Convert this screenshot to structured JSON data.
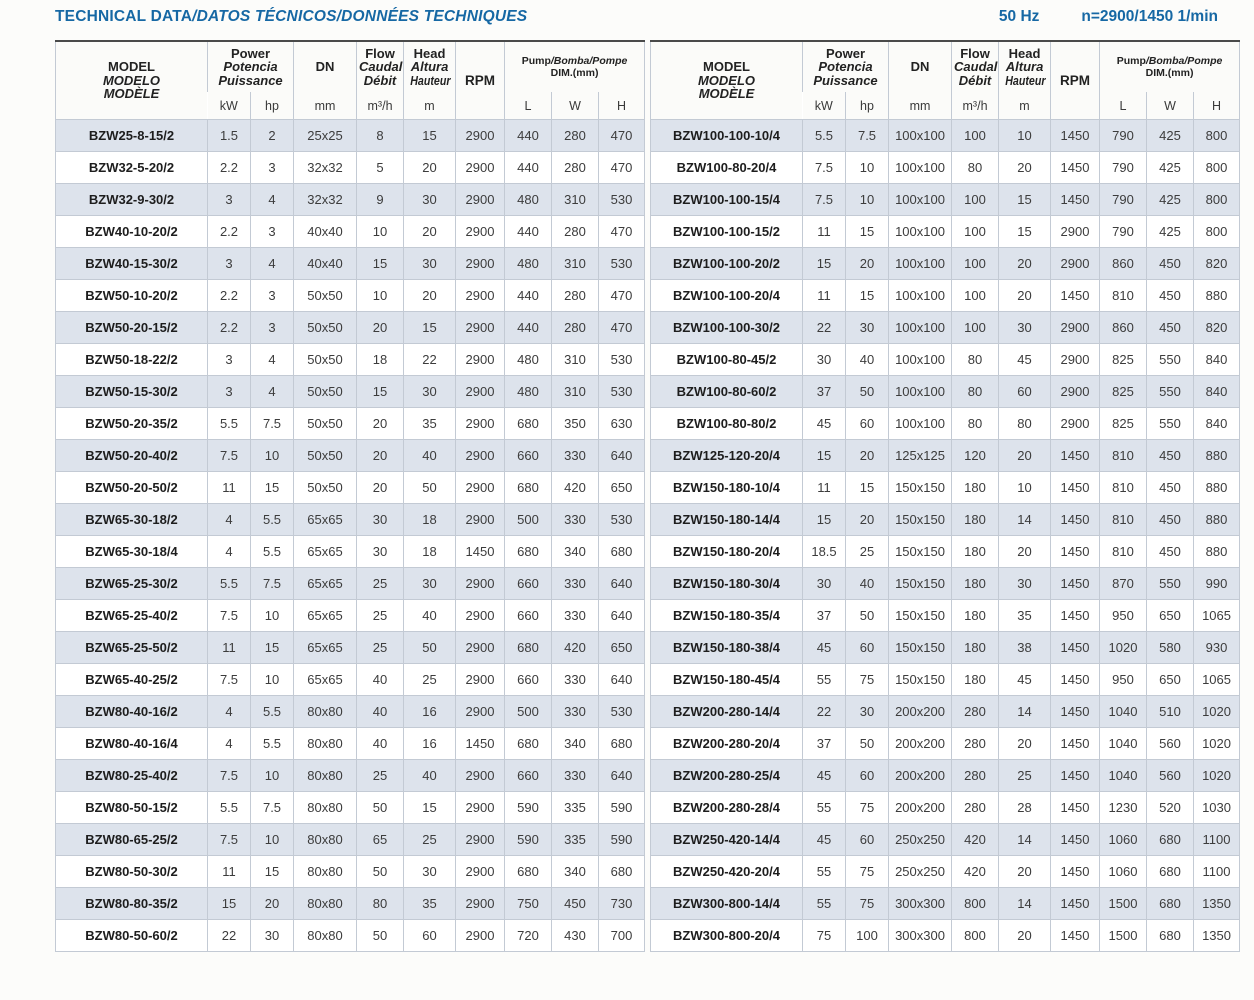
{
  "colors": {
    "accent_blue": "#1668a4",
    "row_stripe": "#dde3ec"
  },
  "topbar": {
    "title_en": "TECHNICAL DATA",
    "title_rest": "/DATOS TÉCNICOS/DONNÉES TECHNIQUES",
    "frequency": "50 Hz",
    "speed": "n=2900/1450 1/min"
  },
  "table_header": {
    "model_lines": [
      "MODEL",
      "MODELO",
      "MODÈLE"
    ],
    "power_lines": [
      "Power",
      "Potencia",
      "Puissance"
    ],
    "power_units": [
      "kW",
      "hp"
    ],
    "dn_label": "DN",
    "dn_unit": "mm",
    "flow_lines": [
      "Flow",
      "Caudal",
      "Débit"
    ],
    "flow_unit": "m³/h",
    "head_lines": [
      "Head",
      "Altura",
      "Hauteur"
    ],
    "head_unit": "m",
    "rpm_label": "RPM",
    "dim_en": "Pump",
    "dim_rest": "/Bomba/Pompe",
    "dim_sub": "DIM.(mm)",
    "dim_units": [
      "L",
      "W",
      "H"
    ]
  },
  "tables": {
    "left": {
      "rows": [
        [
          "BZW25-8-15/2",
          "1.5",
          "2",
          "25x25",
          "8",
          "15",
          "2900",
          "440",
          "280",
          "470"
        ],
        [
          "BZW32-5-20/2",
          "2.2",
          "3",
          "32x32",
          "5",
          "20",
          "2900",
          "440",
          "280",
          "470"
        ],
        [
          "BZW32-9-30/2",
          "3",
          "4",
          "32x32",
          "9",
          "30",
          "2900",
          "480",
          "310",
          "530"
        ],
        [
          "BZW40-10-20/2",
          "2.2",
          "3",
          "40x40",
          "10",
          "20",
          "2900",
          "440",
          "280",
          "470"
        ],
        [
          "BZW40-15-30/2",
          "3",
          "4",
          "40x40",
          "15",
          "30",
          "2900",
          "480",
          "310",
          "530"
        ],
        [
          "BZW50-10-20/2",
          "2.2",
          "3",
          "50x50",
          "10",
          "20",
          "2900",
          "440",
          "280",
          "470"
        ],
        [
          "BZW50-20-15/2",
          "2.2",
          "3",
          "50x50",
          "20",
          "15",
          "2900",
          "440",
          "280",
          "470"
        ],
        [
          "BZW50-18-22/2",
          "3",
          "4",
          "50x50",
          "18",
          "22",
          "2900",
          "480",
          "310",
          "530"
        ],
        [
          "BZW50-15-30/2",
          "3",
          "4",
          "50x50",
          "15",
          "30",
          "2900",
          "480",
          "310",
          "530"
        ],
        [
          "BZW50-20-35/2",
          "5.5",
          "7.5",
          "50x50",
          "20",
          "35",
          "2900",
          "680",
          "350",
          "630"
        ],
        [
          "BZW50-20-40/2",
          "7.5",
          "10",
          "50x50",
          "20",
          "40",
          "2900",
          "660",
          "330",
          "640"
        ],
        [
          "BZW50-20-50/2",
          "11",
          "15",
          "50x50",
          "20",
          "50",
          "2900",
          "680",
          "420",
          "650"
        ],
        [
          "BZW65-30-18/2",
          "4",
          "5.5",
          "65x65",
          "30",
          "18",
          "2900",
          "500",
          "330",
          "530"
        ],
        [
          "BZW65-30-18/4",
          "4",
          "5.5",
          "65x65",
          "30",
          "18",
          "1450",
          "680",
          "340",
          "680"
        ],
        [
          "BZW65-25-30/2",
          "5.5",
          "7.5",
          "65x65",
          "25",
          "30",
          "2900",
          "660",
          "330",
          "640"
        ],
        [
          "BZW65-25-40/2",
          "7.5",
          "10",
          "65x65",
          "25",
          "40",
          "2900",
          "660",
          "330",
          "640"
        ],
        [
          "BZW65-25-50/2",
          "11",
          "15",
          "65x65",
          "25",
          "50",
          "2900",
          "680",
          "420",
          "650"
        ],
        [
          "BZW65-40-25/2",
          "7.5",
          "10",
          "65x65",
          "40",
          "25",
          "2900",
          "660",
          "330",
          "640"
        ],
        [
          "BZW80-40-16/2",
          "4",
          "5.5",
          "80x80",
          "40",
          "16",
          "2900",
          "500",
          "330",
          "530"
        ],
        [
          "BZW80-40-16/4",
          "4",
          "5.5",
          "80x80",
          "40",
          "16",
          "1450",
          "680",
          "340",
          "680"
        ],
        [
          "BZW80-25-40/2",
          "7.5",
          "10",
          "80x80",
          "25",
          "40",
          "2900",
          "660",
          "330",
          "640"
        ],
        [
          "BZW80-50-15/2",
          "5.5",
          "7.5",
          "80x80",
          "50",
          "15",
          "2900",
          "590",
          "335",
          "590"
        ],
        [
          "BZW80-65-25/2",
          "7.5",
          "10",
          "80x80",
          "65",
          "25",
          "2900",
          "590",
          "335",
          "590"
        ],
        [
          "BZW80-50-30/2",
          "11",
          "15",
          "80x80",
          "50",
          "30",
          "2900",
          "680",
          "340",
          "680"
        ],
        [
          "BZW80-80-35/2",
          "15",
          "20",
          "80x80",
          "80",
          "35",
          "2900",
          "750",
          "450",
          "730"
        ],
        [
          "BZW80-50-60/2",
          "22",
          "30",
          "80x80",
          "50",
          "60",
          "2900",
          "720",
          "430",
          "700"
        ]
      ]
    },
    "right": {
      "rows": [
        [
          "BZW100-100-10/4",
          "5.5",
          "7.5",
          "100x100",
          "100",
          "10",
          "1450",
          "790",
          "425",
          "800"
        ],
        [
          "BZW100-80-20/4",
          "7.5",
          "10",
          "100x100",
          "80",
          "20",
          "1450",
          "790",
          "425",
          "800"
        ],
        [
          "BZW100-100-15/4",
          "7.5",
          "10",
          "100x100",
          "100",
          "15",
          "1450",
          "790",
          "425",
          "800"
        ],
        [
          "BZW100-100-15/2",
          "11",
          "15",
          "100x100",
          "100",
          "15",
          "2900",
          "790",
          "425",
          "800"
        ],
        [
          "BZW100-100-20/2",
          "15",
          "20",
          "100x100",
          "100",
          "20",
          "2900",
          "860",
          "450",
          "820"
        ],
        [
          "BZW100-100-20/4",
          "11",
          "15",
          "100x100",
          "100",
          "20",
          "1450",
          "810",
          "450",
          "880"
        ],
        [
          "BZW100-100-30/2",
          "22",
          "30",
          "100x100",
          "100",
          "30",
          "2900",
          "860",
          "450",
          "820"
        ],
        [
          "BZW100-80-45/2",
          "30",
          "40",
          "100x100",
          "80",
          "45",
          "2900",
          "825",
          "550",
          "840"
        ],
        [
          "BZW100-80-60/2",
          "37",
          "50",
          "100x100",
          "80",
          "60",
          "2900",
          "825",
          "550",
          "840"
        ],
        [
          "BZW100-80-80/2",
          "45",
          "60",
          "100x100",
          "80",
          "80",
          "2900",
          "825",
          "550",
          "840"
        ],
        [
          "BZW125-120-20/4",
          "15",
          "20",
          "125x125",
          "120",
          "20",
          "1450",
          "810",
          "450",
          "880"
        ],
        [
          "BZW150-180-10/4",
          "11",
          "15",
          "150x150",
          "180",
          "10",
          "1450",
          "810",
          "450",
          "880"
        ],
        [
          "BZW150-180-14/4",
          "15",
          "20",
          "150x150",
          "180",
          "14",
          "1450",
          "810",
          "450",
          "880"
        ],
        [
          "BZW150-180-20/4",
          "18.5",
          "25",
          "150x150",
          "180",
          "20",
          "1450",
          "810",
          "450",
          "880"
        ],
        [
          "BZW150-180-30/4",
          "30",
          "40",
          "150x150",
          "180",
          "30",
          "1450",
          "870",
          "550",
          "990"
        ],
        [
          "BZW150-180-35/4",
          "37",
          "50",
          "150x150",
          "180",
          "35",
          "1450",
          "950",
          "650",
          "1065"
        ],
        [
          "BZW150-180-38/4",
          "45",
          "60",
          "150x150",
          "180",
          "38",
          "1450",
          "1020",
          "580",
          "930"
        ],
        [
          "BZW150-180-45/4",
          "55",
          "75",
          "150x150",
          "180",
          "45",
          "1450",
          "950",
          "650",
          "1065"
        ],
        [
          "BZW200-280-14/4",
          "22",
          "30",
          "200x200",
          "280",
          "14",
          "1450",
          "1040",
          "510",
          "1020"
        ],
        [
          "BZW200-280-20/4",
          "37",
          "50",
          "200x200",
          "280",
          "20",
          "1450",
          "1040",
          "560",
          "1020"
        ],
        [
          "BZW200-280-25/4",
          "45",
          "60",
          "200x200",
          "280",
          "25",
          "1450",
          "1040",
          "560",
          "1020"
        ],
        [
          "BZW200-280-28/4",
          "55",
          "75",
          "200x200",
          "280",
          "28",
          "1450",
          "1230",
          "520",
          "1030"
        ],
        [
          "BZW250-420-14/4",
          "45",
          "60",
          "250x250",
          "420",
          "14",
          "1450",
          "1060",
          "680",
          "1100"
        ],
        [
          "BZW250-420-20/4",
          "55",
          "75",
          "250x250",
          "420",
          "20",
          "1450",
          "1060",
          "680",
          "1100"
        ],
        [
          "BZW300-800-14/4",
          "55",
          "75",
          "300x300",
          "800",
          "14",
          "1450",
          "1500",
          "680",
          "1350"
        ],
        [
          "BZW300-800-20/4",
          "75",
          "100",
          "300x300",
          "800",
          "20",
          "1450",
          "1500",
          "680",
          "1350"
        ]
      ]
    }
  }
}
